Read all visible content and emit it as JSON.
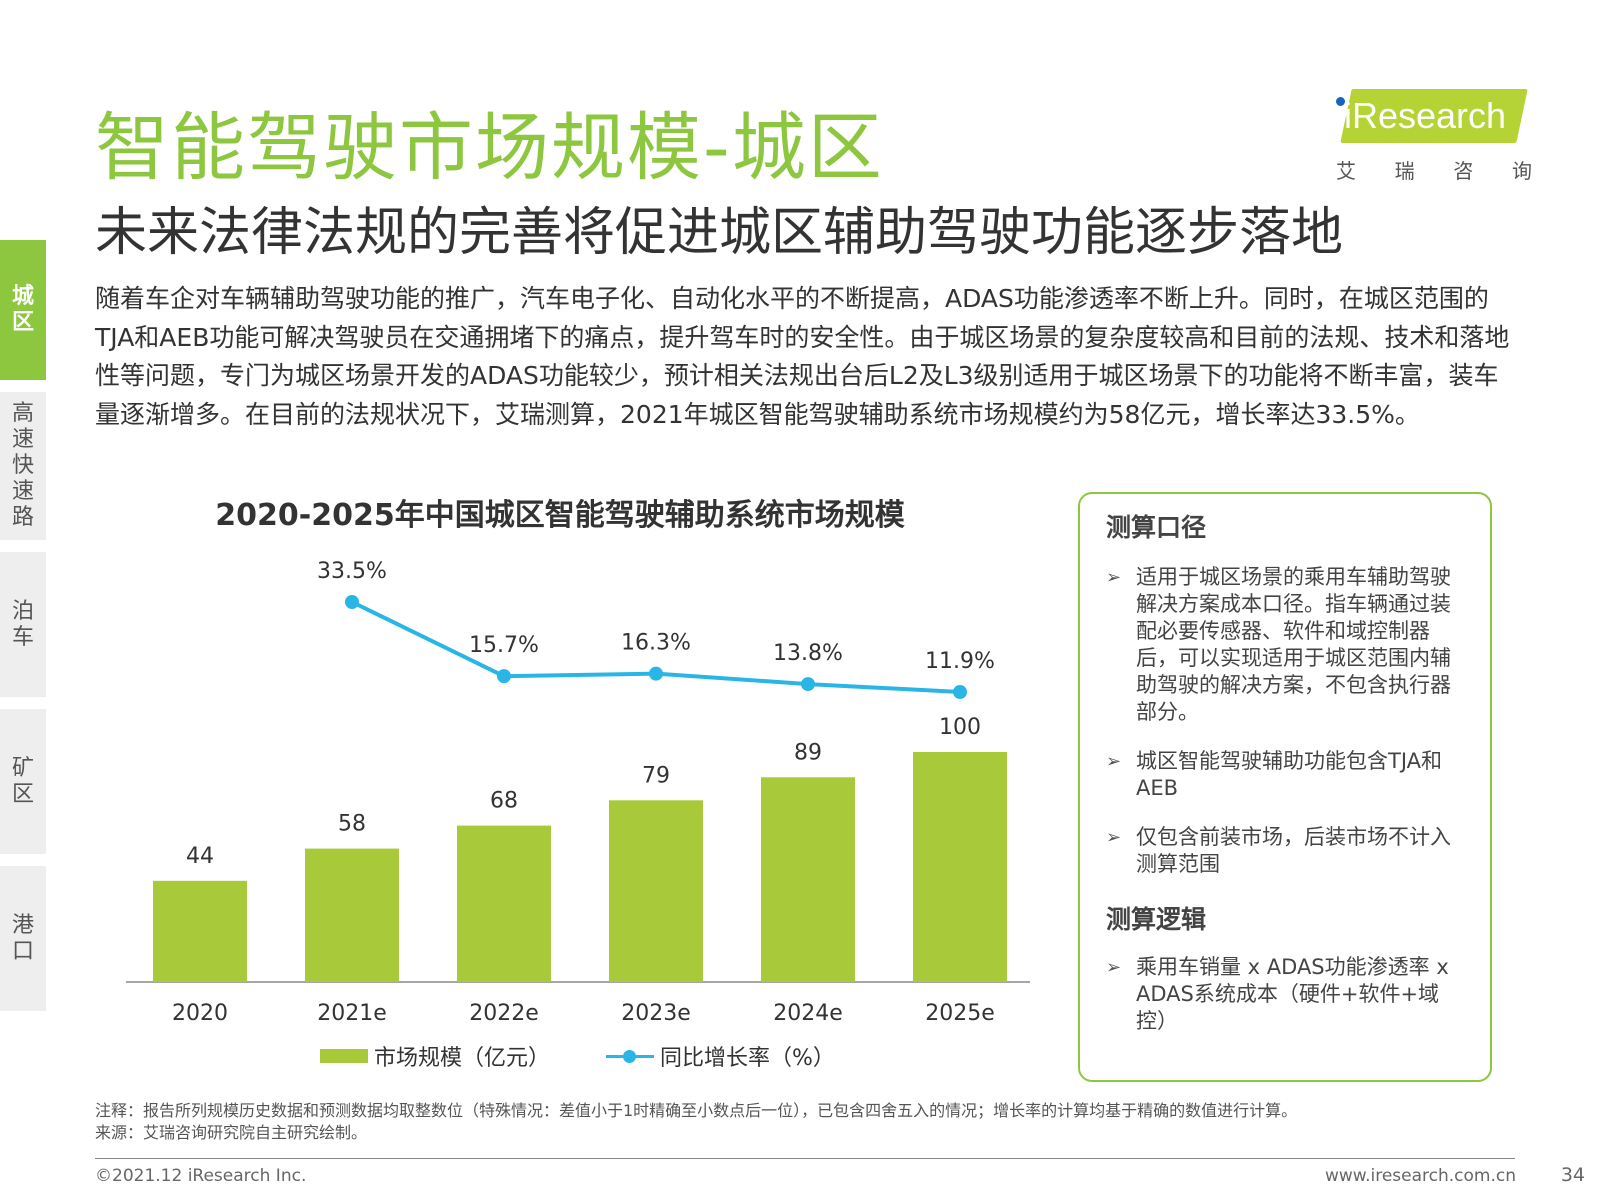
{
  "header": {
    "title": "智能驾驶市场规模-城区",
    "subtitle": "未来法律法规的完善将促进城区辅助驾驶功能逐步落地"
  },
  "logo": {
    "text": "iResearch",
    "cn_chars": [
      "艾",
      "瑞",
      "咨",
      "询"
    ]
  },
  "sidebar": {
    "items": [
      {
        "label": "城区",
        "active": true
      },
      {
        "label": "高速快速路",
        "active": false
      },
      {
        "label": "泊车",
        "active": false
      },
      {
        "label": "矿区",
        "active": false
      },
      {
        "label": "港口",
        "active": false
      }
    ]
  },
  "description": "随着车企对车辆辅助驾驶功能的推广，汽车电子化、自动化水平的不断提高，ADAS功能渗透率不断上升。同时，在城区范围的TJA和AEB功能可解决驾驶员在交通拥堵下的痛点，提升驾车时的安全性。由于城区场景的复杂度较高和目前的法规、技术和落地性等问题，专门为城区场景开发的ADAS功能较少，预计相关法规出台后L2及L3级别适用于城区场景下的功能将不断丰富，装车量逐渐增多。在目前的法规状况下，艾瑞测算，2021年城区智能驾驶辅助系统市场规模约为58亿元，增长率达33.5%。",
  "chart_data": {
    "type": "bar",
    "title": "2020-2025年中国城区智能驾驶辅助系统市场规模",
    "categories": [
      "2020",
      "2021e",
      "2022e",
      "2023e",
      "2024e",
      "2025e"
    ],
    "series": [
      {
        "name": "市场规模（亿元）",
        "type": "bar",
        "values": [
          44,
          58,
          68,
          79,
          89,
          100
        ],
        "labels": [
          "44",
          "58",
          "68",
          "79",
          "89",
          "100"
        ],
        "color": "#a8c93a"
      },
      {
        "name": "同比增长率（%）",
        "type": "line",
        "values": [
          null,
          33.5,
          15.7,
          16.3,
          13.8,
          11.9
        ],
        "labels": [
          "",
          "33.5%",
          "15.7%",
          "16.3%",
          "13.8%",
          "11.9%"
        ],
        "color": "#29b6e6"
      }
    ],
    "ylim": [
      0,
      110
    ],
    "grid": false,
    "legend_position": "bottom"
  },
  "legend": {
    "bar_label": "市场规模（亿元）",
    "line_label": "同比增长率（%）"
  },
  "info_box": {
    "heading1": "测算口径",
    "items1": [
      "适用于城区场景的乘用车辅助驾驶解决方案成本口径。指车辆通过装配必要传感器、软件和域控制器后，可以实现适用于城区范围内辅助驾驶的解决方案，不包含执行器部分。",
      "城区智能驾驶辅助功能包含TJA和AEB",
      "仅包含前装市场，后装市场不计入测算范围"
    ],
    "heading2": "测算逻辑",
    "items2": [
      "乘用车销量 x ADAS功能渗透率 x ADAS系统成本（硬件+软件+域控）"
    ],
    "bullet": "➢"
  },
  "notes": {
    "note": "注释：报告所列规模历史数据和预测数据均取整数位（特殊情况：差值小于1时精确至小数点后一位），已包含四舍五入的情况；增长率的计算均基于精确的数值进行计算。",
    "source": "来源：艾瑞咨询研究院自主研究绘制。"
  },
  "footer": {
    "copyright": "©2021.12 iResearch Inc.",
    "website": "www.iresearch.com.cn",
    "page": "34"
  }
}
